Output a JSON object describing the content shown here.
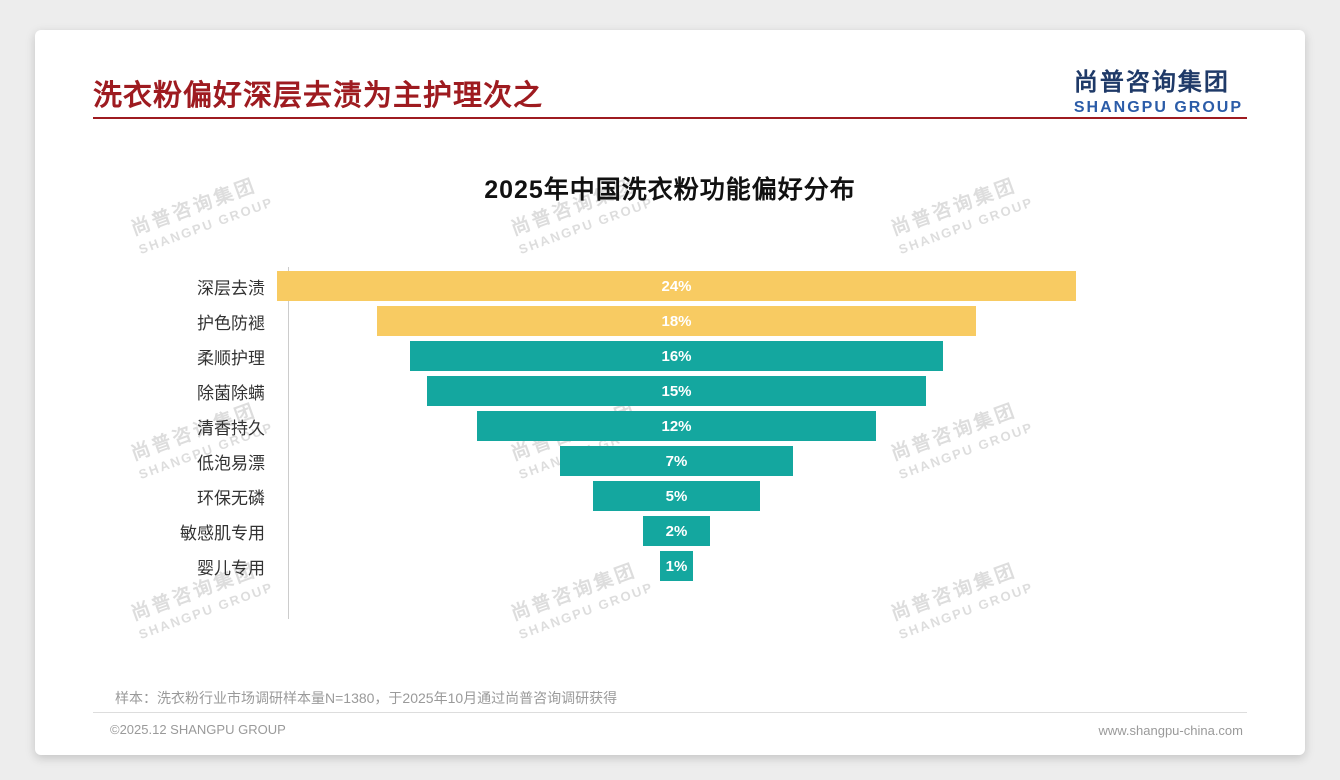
{
  "header": {
    "title": "洗衣粉偏好深层去渍为主护理次之",
    "logo_cn": "尚普咨询集团",
    "logo_en": "SHANGPU GROUP"
  },
  "watermark": {
    "cn": "尚普咨询集团",
    "en": "SHANGPU GROUP"
  },
  "chart_data": {
    "type": "bar",
    "variant": "centered-funnel-horizontal",
    "title": "2025年中国洗衣粉功能偏好分布",
    "categories": [
      "深层去渍",
      "护色防褪",
      "柔顺护理",
      "除菌除螨",
      "清香持久",
      "低泡易漂",
      "环保无磷",
      "敏感肌专用",
      "婴儿专用"
    ],
    "values": [
      24,
      18,
      16,
      15,
      12,
      7,
      5,
      2,
      1
    ],
    "value_labels": [
      "24%",
      "18%",
      "16%",
      "15%",
      "12%",
      "7%",
      "5%",
      "2%",
      "1%"
    ],
    "bar_colors": [
      "#F8CB62",
      "#F8CB62",
      "#14A79F",
      "#14A79F",
      "#14A79F",
      "#14A79F",
      "#14A79F",
      "#14A79F",
      "#14A79F"
    ],
    "unit": "%",
    "xlim": [
      0,
      24
    ],
    "grid": false,
    "legend": false,
    "value_label_position": "inside-center",
    "value_label_color": "#FFFFFF"
  },
  "footnote": "样本：洗衣粉行业市场调研样本量N=1380，于2025年10月通过尚普咨询调研获得",
  "footer": {
    "left": "©2025.12 SHANGPU GROUP",
    "right": "www.shangpu-china.com"
  },
  "colors": {
    "title_red": "#9E1B20",
    "logo_blue_dark": "#1F3A68",
    "logo_blue": "#2B5CA8",
    "bar_yellow": "#F8CB62",
    "bar_teal": "#14A79F",
    "page_background": "#EDEDED",
    "slide_background": "#FFFFFF"
  }
}
